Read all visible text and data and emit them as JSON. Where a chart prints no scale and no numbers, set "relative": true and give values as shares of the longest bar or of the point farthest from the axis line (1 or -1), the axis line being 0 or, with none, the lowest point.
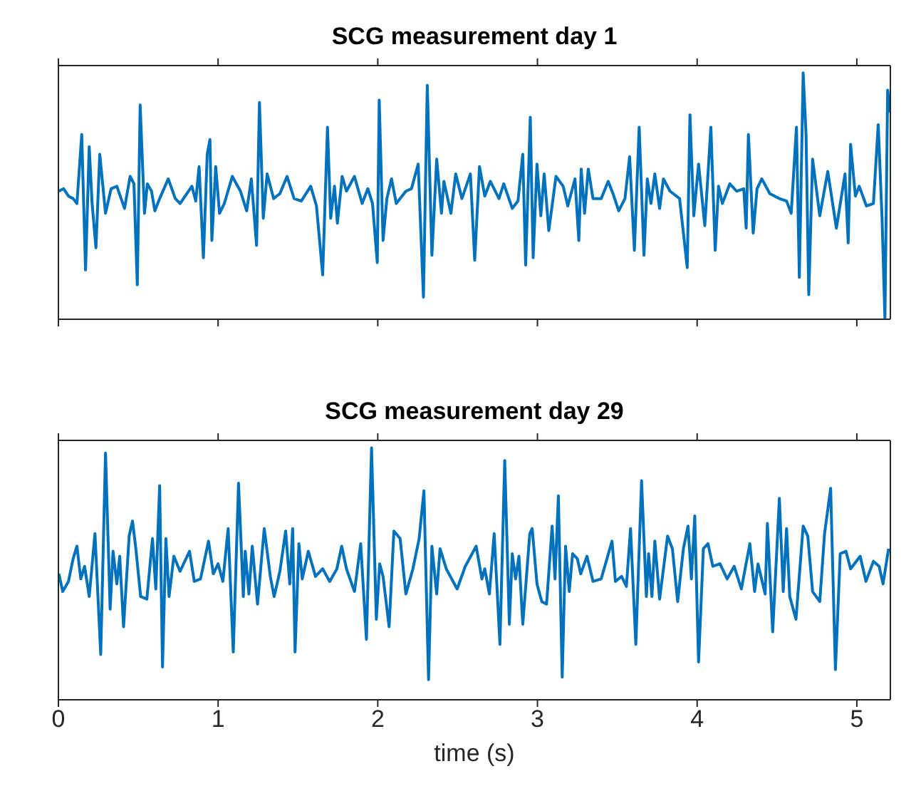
{
  "chart_data": [
    {
      "type": "line",
      "title": "SCG measurement day 1",
      "relative": true,
      "color": "#0072bd",
      "xlim": [
        0,
        5.21
      ],
      "xticks": [
        0,
        1,
        2,
        3,
        4,
        5
      ],
      "tick_labels": false,
      "x": [
        0.003,
        0.033,
        0.063,
        0.092,
        0.116,
        0.146,
        0.17,
        0.193,
        0.211,
        0.235,
        0.259,
        0.295,
        0.33,
        0.366,
        0.414,
        0.449,
        0.473,
        0.494,
        0.512,
        0.539,
        0.557,
        0.583,
        0.604,
        0.634,
        0.688,
        0.732,
        0.762,
        0.836,
        0.86,
        0.881,
        0.908,
        0.932,
        0.949,
        0.961,
        0.985,
        1.009,
        1.039,
        1.089,
        1.14,
        1.179,
        1.208,
        1.241,
        1.259,
        1.283,
        1.307,
        1.348,
        1.387,
        1.432,
        1.476,
        1.521,
        1.58,
        1.616,
        1.655,
        1.685,
        1.705,
        1.729,
        1.747,
        1.777,
        1.804,
        1.854,
        1.902,
        1.938,
        1.967,
        1.997,
        2.009,
        2.033,
        2.057,
        2.086,
        2.116,
        2.176,
        2.211,
        2.253,
        2.286,
        2.31,
        2.339,
        2.369,
        2.399,
        2.414,
        2.458,
        2.488,
        2.527,
        2.58,
        2.607,
        2.637,
        2.67,
        2.705,
        2.759,
        2.789,
        2.842,
        2.878,
        2.908,
        2.926,
        2.955,
        2.973,
        2.997,
        3.021,
        3.042,
        3.071,
        3.116,
        3.161,
        3.19,
        3.235,
        3.259,
        3.274,
        3.295,
        3.318,
        3.348,
        3.399,
        3.443,
        3.473,
        3.509,
        3.548,
        3.577,
        3.607,
        3.637,
        3.667,
        3.688,
        3.711,
        3.735,
        3.765,
        3.789,
        3.83,
        3.89,
        3.938,
        3.955,
        3.979,
        4.009,
        4.048,
        4.086,
        4.113,
        4.134,
        4.158,
        4.205,
        4.247,
        4.292,
        4.307,
        4.321,
        4.351,
        4.375,
        4.405,
        4.455,
        4.515,
        4.56,
        4.589,
        4.622,
        4.64,
        4.664,
        4.682,
        4.699,
        4.723,
        4.768,
        4.818,
        4.872,
        4.926,
        4.946,
        4.961,
        4.991,
        5.015,
        5.06,
        5.104,
        5.134,
        5.158,
        5.176,
        5.193,
        5.208
      ],
      "values": [
        0.52,
        0.53,
        0.5,
        0.49,
        0.47,
        0.75,
        0.2,
        0.7,
        0.47,
        0.29,
        0.67,
        0.43,
        0.53,
        0.54,
        0.45,
        0.58,
        0.55,
        0.14,
        0.87,
        0.43,
        0.55,
        0.52,
        0.44,
        0.49,
        0.57,
        0.49,
        0.47,
        0.54,
        0.48,
        0.62,
        0.25,
        0.67,
        0.73,
        0.32,
        0.62,
        0.43,
        0.47,
        0.58,
        0.52,
        0.44,
        0.57,
        0.3,
        0.88,
        0.41,
        0.59,
        0.49,
        0.51,
        0.58,
        0.49,
        0.48,
        0.54,
        0.46,
        0.18,
        0.78,
        0.41,
        0.54,
        0.39,
        0.58,
        0.52,
        0.58,
        0.47,
        0.53,
        0.47,
        0.23,
        0.89,
        0.32,
        0.49,
        0.57,
        0.47,
        0.52,
        0.53,
        0.63,
        0.09,
        0.95,
        0.26,
        0.65,
        0.43,
        0.56,
        0.43,
        0.59,
        0.49,
        0.59,
        0.24,
        0.62,
        0.5,
        0.56,
        0.49,
        0.55,
        0.45,
        0.48,
        0.67,
        0.22,
        0.82,
        0.25,
        0.63,
        0.42,
        0.59,
        0.36,
        0.58,
        0.54,
        0.46,
        0.57,
        0.32,
        0.61,
        0.43,
        0.61,
        0.49,
        0.49,
        0.56,
        0.51,
        0.44,
        0.49,
        0.66,
        0.28,
        0.78,
        0.26,
        0.57,
        0.47,
        0.59,
        0.45,
        0.57,
        0.52,
        0.49,
        0.21,
        0.83,
        0.42,
        0.63,
        0.38,
        0.78,
        0.28,
        0.54,
        0.47,
        0.55,
        0.52,
        0.53,
        0.37,
        0.75,
        0.35,
        0.53,
        0.57,
        0.51,
        0.49,
        0.48,
        0.43,
        0.78,
        0.17,
        1.0,
        0.75,
        0.1,
        0.65,
        0.42,
        0.6,
        0.37,
        0.59,
        0.31,
        0.71,
        0.5,
        0.54,
        0.46,
        0.47,
        0.79,
        0.41,
        0.0,
        0.93,
        0.84
      ]
    },
    {
      "type": "line",
      "title": "SCG measurement day 29",
      "xlabel": "time (s)",
      "relative": true,
      "color": "#0072bd",
      "xlim": [
        0,
        5.21
      ],
      "xticks": [
        0,
        1,
        2,
        3,
        4,
        5
      ],
      "tick_labels": "x",
      "x": [
        0.003,
        0.027,
        0.063,
        0.092,
        0.116,
        0.14,
        0.164,
        0.193,
        0.229,
        0.265,
        0.295,
        0.324,
        0.342,
        0.366,
        0.384,
        0.408,
        0.443,
        0.464,
        0.485,
        0.515,
        0.554,
        0.589,
        0.61,
        0.634,
        0.652,
        0.673,
        0.693,
        0.723,
        0.762,
        0.821,
        0.851,
        0.89,
        0.94,
        0.97,
        1.0,
        1.03,
        1.063,
        1.095,
        1.128,
        1.158,
        1.17,
        1.193,
        1.214,
        1.247,
        1.289,
        1.327,
        1.351,
        1.387,
        1.423,
        1.449,
        1.467,
        1.482,
        1.506,
        1.527,
        1.565,
        1.61,
        1.655,
        1.699,
        1.744,
        1.774,
        1.804,
        1.854,
        1.893,
        1.929,
        1.961,
        1.991,
        2.012,
        2.033,
        2.071,
        2.101,
        2.14,
        2.176,
        2.22,
        2.259,
        2.289,
        2.318,
        2.339,
        2.369,
        2.39,
        2.429,
        2.497,
        2.548,
        2.616,
        2.652,
        2.67,
        2.699,
        2.729,
        2.765,
        2.795,
        2.824,
        2.842,
        2.863,
        2.884,
        2.908,
        2.952,
        2.967,
        2.997,
        3.027,
        3.057,
        3.092,
        3.11,
        3.131,
        3.155,
        3.176,
        3.199,
        3.22,
        3.25,
        3.271,
        3.31,
        3.348,
        3.399,
        3.467,
        3.488,
        3.527,
        3.557,
        3.583,
        3.616,
        3.652,
        3.682,
        3.696,
        3.717,
        3.735,
        3.765,
        3.815,
        3.845,
        3.878,
        3.914,
        3.943,
        3.964,
        3.985,
        4.009,
        4.039,
        4.068,
        4.098,
        4.143,
        4.188,
        4.232,
        4.277,
        4.33,
        4.36,
        4.381,
        4.426,
        4.44,
        4.473,
        4.515,
        4.539,
        4.56,
        4.58,
        4.619,
        4.664,
        4.693,
        4.723,
        4.768,
        4.798,
        4.836,
        4.866,
        4.896,
        4.932,
        4.961,
        5.021,
        5.057,
        5.104,
        5.14,
        5.164,
        5.199
      ],
      "values": [
        0.5,
        0.43,
        0.47,
        0.56,
        0.61,
        0.48,
        0.53,
        0.41,
        0.66,
        0.18,
        0.98,
        0.36,
        0.59,
        0.46,
        0.57,
        0.29,
        0.65,
        0.71,
        0.6,
        0.41,
        0.4,
        0.64,
        0.44,
        0.85,
        0.13,
        0.64,
        0.41,
        0.57,
        0.51,
        0.59,
        0.47,
        0.48,
        0.63,
        0.5,
        0.54,
        0.47,
        0.68,
        0.19,
        0.86,
        0.41,
        0.59,
        0.42,
        0.61,
        0.38,
        0.68,
        0.49,
        0.41,
        0.51,
        0.67,
        0.46,
        0.68,
        0.19,
        0.62,
        0.48,
        0.59,
        0.49,
        0.52,
        0.47,
        0.52,
        0.61,
        0.52,
        0.43,
        0.62,
        0.24,
        1.0,
        0.32,
        0.54,
        0.49,
        0.29,
        0.67,
        0.64,
        0.42,
        0.52,
        0.64,
        0.83,
        0.08,
        0.61,
        0.42,
        0.6,
        0.52,
        0.44,
        0.53,
        0.61,
        0.48,
        0.52,
        0.42,
        0.66,
        0.22,
        0.95,
        0.3,
        0.58,
        0.48,
        0.57,
        0.3,
        0.66,
        0.68,
        0.46,
        0.39,
        0.38,
        0.69,
        0.48,
        0.81,
        0.09,
        0.61,
        0.43,
        0.58,
        0.56,
        0.5,
        0.57,
        0.47,
        0.48,
        0.63,
        0.47,
        0.49,
        0.45,
        0.68,
        0.22,
        0.87,
        0.41,
        0.58,
        0.41,
        0.63,
        0.4,
        0.65,
        0.6,
        0.39,
        0.6,
        0.69,
        0.48,
        0.73,
        0.15,
        0.6,
        0.62,
        0.53,
        0.54,
        0.48,
        0.53,
        0.44,
        0.62,
        0.43,
        0.54,
        0.42,
        0.7,
        0.27,
        0.8,
        0.43,
        0.68,
        0.41,
        0.32,
        0.69,
        0.65,
        0.43,
        0.39,
        0.66,
        0.84,
        0.12,
        0.58,
        0.59,
        0.52,
        0.57,
        0.47,
        0.55,
        0.53,
        0.46,
        0.6
      ]
    }
  ]
}
